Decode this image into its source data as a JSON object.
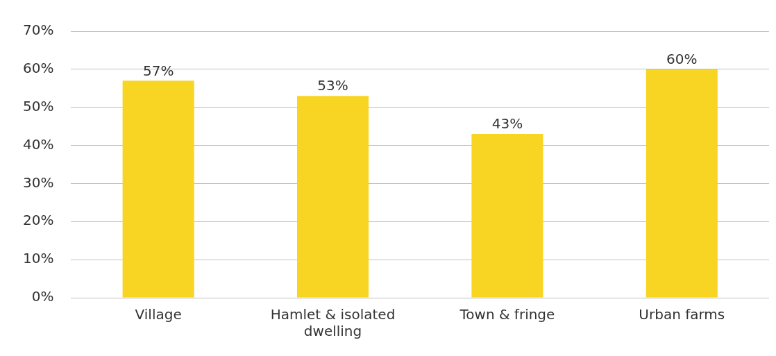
{
  "chart_data": {
    "type": "bar",
    "categories": [
      "Village",
      "Hamlet & isolated dwelling",
      "Town & fringe",
      "Urban farms"
    ],
    "values": [
      57,
      53,
      43,
      60
    ],
    "value_labels": [
      "57%",
      "53%",
      "43%",
      "60%"
    ],
    "color": "#f9d523",
    "ylim": [
      0,
      70
    ],
    "yticks": [
      {
        "value": 0,
        "label": "0%"
      },
      {
        "value": 10,
        "label": "10%"
      },
      {
        "value": 20,
        "label": "20%"
      },
      {
        "value": 30,
        "label": "30%"
      },
      {
        "value": 40,
        "label": "40%"
      },
      {
        "value": 50,
        "label": "50%"
      },
      {
        "value": 60,
        "label": "60%"
      },
      {
        "value": 70,
        "label": "70%"
      }
    ],
    "grid": "y",
    "legend": false
  }
}
